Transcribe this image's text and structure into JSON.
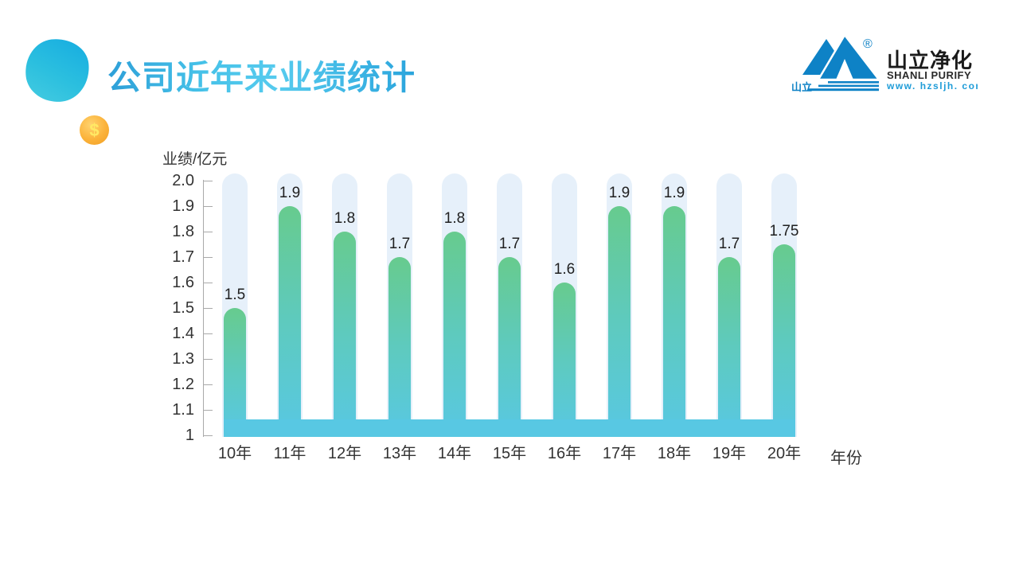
{
  "slide": {
    "title": "公司近年来业绩统计"
  },
  "decorations": {
    "coin_symbol": "$"
  },
  "logo": {
    "mark_label": "山立",
    "registered": "®",
    "brand_cn": "山立净化",
    "brand_en": "SHANLI PURIFY",
    "website": "www. hzsljh. com",
    "brand_color": "#0e82c6"
  },
  "chart_data": {
    "type": "bar",
    "title": "",
    "ylabel": "业绩/亿元",
    "xlabel": "年份",
    "categories": [
      "10年",
      "11年",
      "12年",
      "13年",
      "14年",
      "15年",
      "16年",
      "17年",
      "18年",
      "19年",
      "20年"
    ],
    "values": [
      1.5,
      1.9,
      1.8,
      1.7,
      1.8,
      1.7,
      1.6,
      1.9,
      1.9,
      1.7,
      1.75
    ],
    "ylim": [
      1,
      2
    ],
    "ytick_step": 0.1,
    "grid": false,
    "legend": null,
    "colors": {
      "bar_top": "#67cb8e",
      "bar_bottom": "#58c8e3",
      "track": "#e6f0fa",
      "axis": "#a9a9a9",
      "text": "#333333"
    }
  }
}
